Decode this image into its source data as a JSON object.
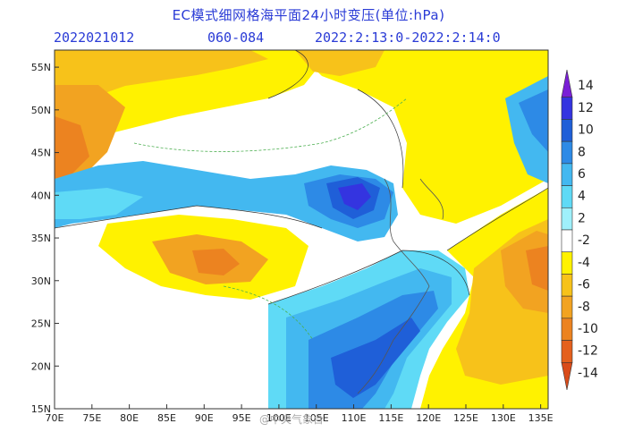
{
  "header": {
    "title": "EC模式细网格海平面24小时变压(单位:hPa)",
    "init_time": "2022021012",
    "forecast_hours": "060-084",
    "valid_range": "2022:2:13:0-2022:2:14:0"
  },
  "map": {
    "lon_labels": [
      "70E",
      "75E",
      "80E",
      "85E",
      "90E",
      "95E",
      "100E",
      "105E",
      "110E",
      "115E",
      "120E",
      "125E",
      "130E",
      "135E"
    ],
    "lat_labels": [
      "55N",
      "50N",
      "45N",
      "40N",
      "35N",
      "30N",
      "25N",
      "20N",
      "15N"
    ],
    "lon_range": [
      70,
      136
    ],
    "lat_range": [
      15,
      57
    ],
    "unit": "hPa"
  },
  "colorbar": {
    "levels": [
      "14",
      "12",
      "10",
      "8",
      "6",
      "4",
      "2",
      "-2",
      "-4",
      "-6",
      "-8",
      "-10",
      "-12",
      "-14"
    ],
    "colors": [
      "#7a1fd6",
      "#3434e0",
      "#1f5fd8",
      "#2d8ae6",
      "#43b8f0",
      "#5fdaf6",
      "#9ff0fb",
      "#ffffff",
      "#fff200",
      "#f7c21a",
      "#f2a321",
      "#ec8320",
      "#e4601d",
      "#d94c1a"
    ]
  },
  "watermark": "@中央气象台",
  "colors": {
    "text_blue": "#2a3bd6",
    "border": "#333333"
  }
}
